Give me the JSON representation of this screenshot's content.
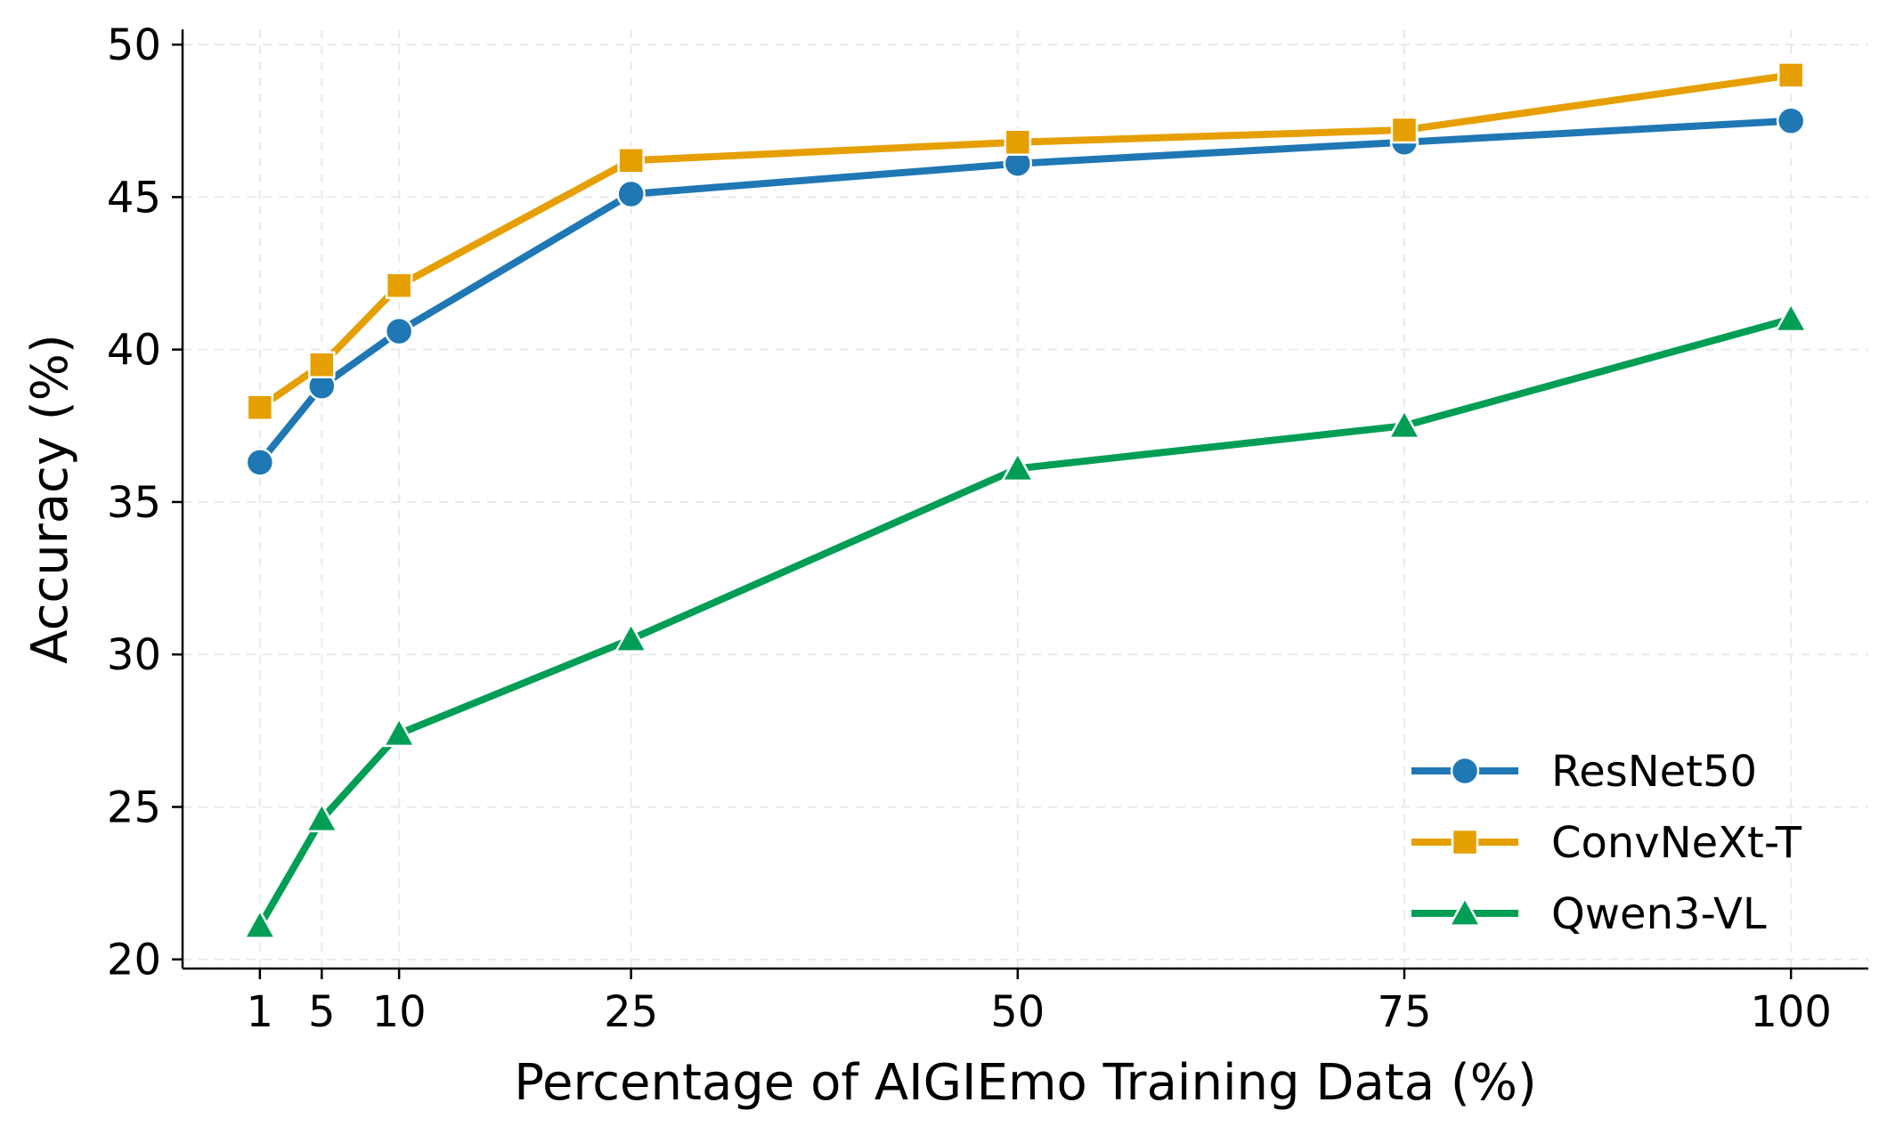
{
  "chart_data": {
    "type": "line",
    "title": "",
    "xlabel": "Percentage of AIGIEmo Training Data (%)",
    "ylabel": "Accuracy (%)",
    "x": [
      1,
      5,
      10,
      25,
      50,
      75,
      100
    ],
    "xticks": [
      1,
      5,
      10,
      25,
      50,
      75,
      100
    ],
    "yticks": [
      20,
      25,
      30,
      35,
      40,
      45,
      50
    ],
    "xlim": [
      -4,
      105
    ],
    "ylim": [
      19.7,
      50.5
    ],
    "grid": true,
    "legend_position": "lower-right",
    "series": [
      {
        "name": "ResNet50",
        "color": "#1f77b4",
        "marker": "circle",
        "values": [
          36.3,
          38.8,
          40.6,
          45.1,
          46.1,
          46.8,
          47.5
        ]
      },
      {
        "name": "ConvNeXt-T",
        "color": "#e69f00",
        "marker": "square",
        "values": [
          38.1,
          39.5,
          42.1,
          46.2,
          46.8,
          47.2,
          49.0
        ]
      },
      {
        "name": "Qwen3-VL",
        "color": "#009e55",
        "marker": "triangle",
        "values": [
          21.1,
          24.6,
          27.4,
          30.5,
          36.1,
          37.5,
          41.0
        ]
      }
    ]
  }
}
